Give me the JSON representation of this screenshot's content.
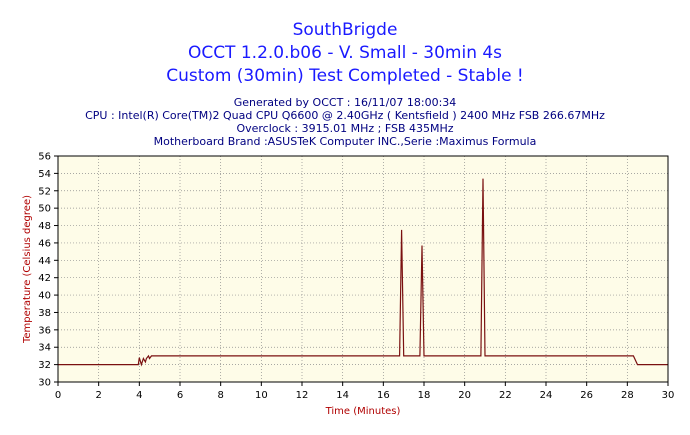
{
  "colors": {
    "title": "#1a1aff",
    "info": "#000080",
    "plot_bg": "#fefce8",
    "grid": "#8c8c8c",
    "line": "#7a1010",
    "axis_label": "#b00000"
  },
  "header": {
    "title1": "SouthBrigde",
    "title2": "OCCT 1.2.0.b06 - V. Small - 30min 4s",
    "title3": "Custom (30min) Test Completed - Stable !",
    "info1": "Generated by OCCT : 16/11/07 18:00:34",
    "info2": "CPU : Intel(R) Core(TM)2 Quad CPU Q6600 @ 2.40GHz ( Kentsfield ) 2400 MHz FSB 266.67MHz",
    "info3": "Overclock : 3915.01 MHz ; FSB 435MHz",
    "info4": "Motherboard Brand :ASUSTeK Computer INC.,Serie :Maximus Formula"
  },
  "chart_data": {
    "type": "line",
    "xlabel": "Time (Minutes)",
    "ylabel": "Temperature (Celsius degree)",
    "xlim": [
      0,
      30
    ],
    "ylim": [
      30,
      56
    ],
    "xticks": [
      0,
      2,
      4,
      6,
      8,
      10,
      12,
      14,
      16,
      18,
      20,
      22,
      24,
      26,
      28,
      30
    ],
    "yticks": [
      30,
      32,
      34,
      36,
      38,
      40,
      42,
      44,
      46,
      48,
      50,
      52,
      54,
      56
    ],
    "grid": true,
    "series": [
      {
        "x": [
          0,
          3.95,
          4.0,
          4.05,
          4.1,
          4.2,
          4.3,
          4.35,
          4.45,
          4.5,
          4.6,
          4.7,
          16.7,
          16.8,
          16.9,
          17.0,
          17.1,
          17.7,
          17.8,
          17.9,
          18.0,
          18.1,
          20.7,
          20.8,
          20.9,
          21.0,
          21.1,
          28.3,
          28.5,
          28.6,
          30
        ],
        "y": [
          32,
          32,
          32.8,
          32.4,
          32,
          32.7,
          32.3,
          32.7,
          33,
          32.7,
          33,
          33,
          33,
          33,
          47.5,
          33,
          33,
          33,
          33,
          45.7,
          33,
          33,
          33,
          33,
          53.4,
          33,
          33,
          33,
          32,
          32,
          32
        ]
      }
    ]
  }
}
